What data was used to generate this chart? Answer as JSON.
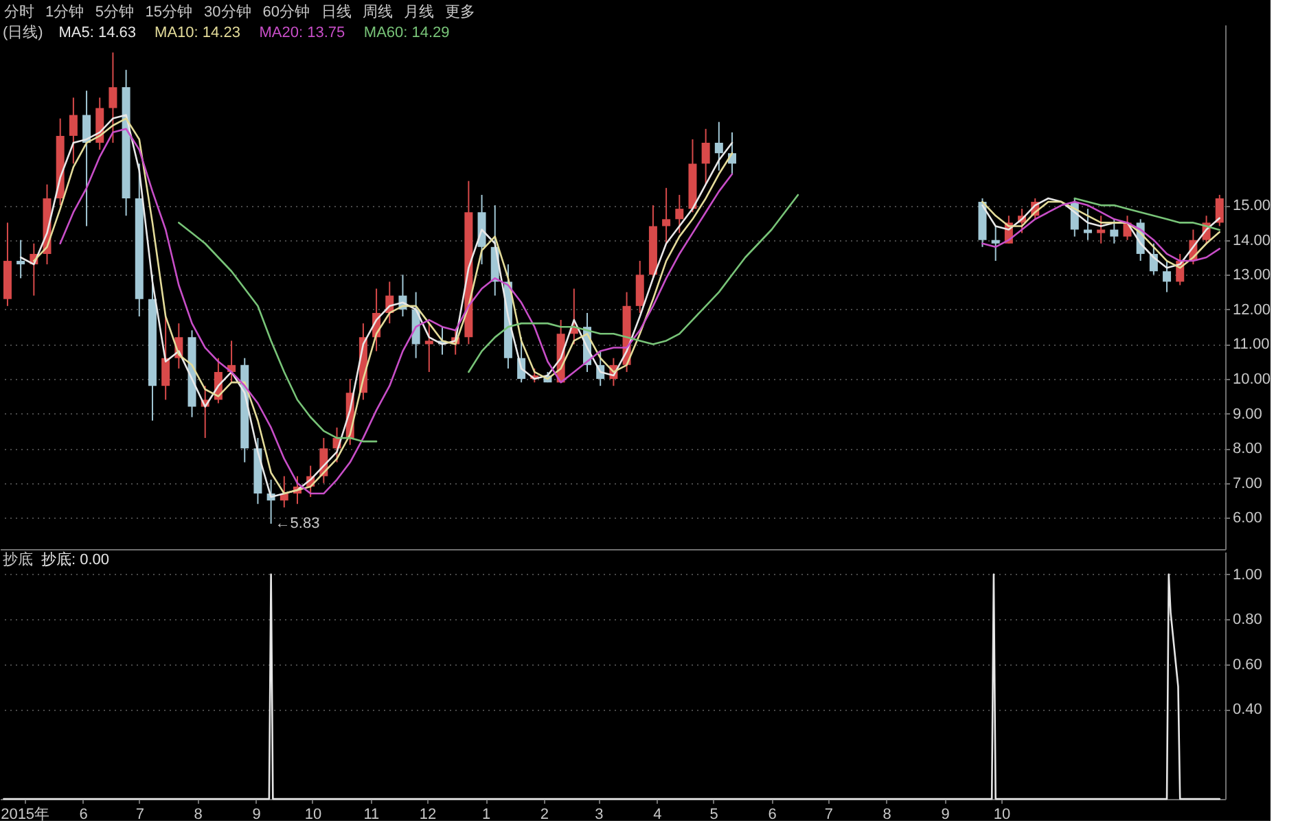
{
  "chart_data": [
    {
      "type": "candlestick",
      "title": "(日线)",
      "annotations": [
        "分时",
        "1分钟",
        "5分钟",
        "15分钟",
        "30分钟",
        "60分钟",
        "日线",
        "周线",
        "月线",
        "更多",
        {
          "text": "←5.83",
          "x": "2015-09-09",
          "y": 5.83
        }
      ],
      "x": [
        "2015-04-22",
        "2015-04-29",
        "2015-05-06",
        "2015-05-13",
        "2015-05-20",
        "2015-05-27",
        "2015-06-03",
        "2015-06-10",
        "2015-06-17",
        "2015-06-24",
        "2015-07-01",
        "2015-07-08",
        "2015-07-15",
        "2015-07-22",
        "2015-07-29",
        "2015-08-05",
        "2015-08-12",
        "2015-08-19",
        "2015-08-26",
        "2015-09-02",
        "2015-09-09",
        "2015-09-16",
        "2015-09-23",
        "2015-09-30",
        "2015-10-07",
        "2015-10-14",
        "2015-10-21",
        "2015-10-28",
        "2015-11-04",
        "2015-11-11",
        "2015-11-18",
        "2015-11-25",
        "2015-12-02",
        "2015-12-09",
        "2015-12-16",
        "2015-12-23",
        "2015-12-30",
        "2016-01-06",
        "2016-01-13",
        "2016-01-20",
        "2016-01-27",
        "2016-02-03",
        "2016-02-10",
        "2016-02-17",
        "2016-02-24",
        "2016-03-02",
        "2016-03-09",
        "2016-03-16",
        "2016-03-23",
        "2016-03-30",
        "2016-04-06",
        "2016-04-13",
        "2016-04-20",
        "2016-04-27",
        "2016-05-04",
        "2016-05-11",
        "2016-09-21",
        "2016-09-28",
        "2016-10-05",
        "2016-10-12",
        "2016-10-19",
        "2016-11-09",
        "2016-11-16",
        "2016-11-23",
        "2016-11-30",
        "2016-12-07",
        "2016-12-14",
        "2016-12-21",
        "2016-12-28",
        "2017-01-04",
        "2017-01-11",
        "2017-01-18",
        "2017-01-25"
      ],
      "ohlc": [
        [
          12.3,
          14.5,
          12.1,
          13.4
        ],
        [
          13.4,
          14.0,
          12.9,
          13.3
        ],
        [
          13.3,
          13.9,
          12.4,
          13.6
        ],
        [
          13.6,
          15.6,
          13.3,
          15.2
        ],
        [
          15.2,
          17.5,
          15.0,
          17.0
        ],
        [
          17.0,
          18.1,
          16.2,
          17.6
        ],
        [
          17.6,
          18.3,
          14.4,
          16.8
        ],
        [
          16.8,
          18.1,
          16.6,
          17.8
        ],
        [
          17.8,
          19.4,
          16.8,
          18.4
        ],
        [
          18.4,
          18.9,
          14.7,
          15.2
        ],
        [
          15.2,
          16.2,
          11.8,
          12.3
        ],
        [
          12.3,
          13.0,
          8.8,
          9.8
        ],
        [
          9.8,
          11.8,
          9.4,
          10.6
        ],
        [
          10.6,
          11.6,
          10.3,
          11.2
        ],
        [
          11.2,
          11.4,
          8.9,
          9.2
        ],
        [
          9.2,
          9.8,
          8.3,
          9.4
        ],
        [
          9.4,
          10.6,
          9.3,
          10.2
        ],
        [
          10.2,
          11.1,
          9.9,
          10.4
        ],
        [
          10.4,
          10.6,
          7.6,
          8.0
        ],
        [
          8.0,
          8.3,
          6.4,
          6.7
        ],
        [
          6.7,
          7.1,
          5.83,
          6.5
        ],
        [
          6.5,
          7.2,
          6.3,
          6.7
        ],
        [
          6.7,
          7.2,
          6.4,
          6.9
        ],
        [
          6.9,
          7.5,
          6.6,
          7.2
        ],
        [
          7.2,
          8.3,
          7.0,
          8.0
        ],
        [
          8.0,
          8.6,
          7.6,
          8.3
        ],
        [
          8.3,
          10.0,
          8.1,
          9.6
        ],
        [
          9.6,
          11.6,
          9.4,
          11.2
        ],
        [
          11.2,
          12.6,
          10.8,
          11.9
        ],
        [
          11.9,
          12.8,
          11.6,
          12.4
        ],
        [
          12.4,
          13.0,
          11.8,
          12.0
        ],
        [
          12.0,
          12.5,
          10.6,
          11.0
        ],
        [
          11.0,
          11.6,
          10.2,
          11.1
        ],
        [
          11.1,
          11.5,
          10.7,
          11.0
        ],
        [
          11.0,
          11.4,
          10.7,
          11.2
        ],
        [
          11.2,
          15.7,
          11.0,
          14.8
        ],
        [
          14.8,
          15.3,
          13.3,
          13.8
        ],
        [
          13.8,
          15.0,
          12.4,
          12.8
        ],
        [
          12.8,
          13.3,
          10.3,
          10.6
        ],
        [
          10.6,
          11.2,
          9.9,
          10.0
        ],
        [
          10.0,
          10.3,
          9.9,
          10.1
        ],
        [
          10.1,
          10.2,
          9.9,
          9.9
        ],
        [
          9.9,
          11.7,
          9.9,
          11.3
        ],
        [
          11.3,
          12.6,
          11.0,
          11.5
        ],
        [
          11.5,
          11.9,
          10.2,
          10.4
        ],
        [
          10.4,
          10.8,
          9.8,
          10.0
        ],
        [
          10.0,
          10.6,
          9.8,
          10.4
        ],
        [
          10.4,
          12.5,
          10.2,
          12.1
        ],
        [
          12.1,
          13.4,
          11.9,
          13.0
        ],
        [
          13.0,
          15.0,
          12.9,
          14.4
        ],
        [
          14.4,
          15.5,
          13.9,
          14.6
        ],
        [
          14.6,
          15.3,
          14.2,
          14.9
        ],
        [
          14.9,
          16.9,
          14.8,
          16.2
        ],
        [
          16.2,
          17.2,
          15.6,
          16.8
        ],
        [
          16.8,
          17.4,
          16.0,
          16.5
        ],
        [
          16.5,
          17.1,
          15.9,
          16.2
        ],
        [
          15.1,
          15.2,
          13.8,
          14.0
        ],
        [
          14.0,
          14.4,
          13.4,
          13.9
        ],
        [
          13.9,
          14.7,
          13.9,
          14.5
        ],
        [
          14.5,
          14.9,
          14.2,
          14.7
        ],
        [
          14.7,
          15.2,
          14.6,
          15.1
        ],
        [
          15.1,
          15.2,
          14.1,
          14.3
        ],
        [
          14.3,
          14.9,
          14.0,
          14.2
        ],
        [
          14.2,
          14.7,
          13.9,
          14.3
        ],
        [
          14.3,
          14.6,
          13.9,
          14.1
        ],
        [
          14.1,
          14.7,
          14.0,
          14.5
        ],
        [
          14.5,
          14.6,
          13.4,
          13.6
        ],
        [
          13.6,
          13.9,
          13.0,
          13.1
        ],
        [
          13.1,
          13.4,
          12.5,
          12.8
        ],
        [
          12.8,
          13.6,
          12.7,
          13.4
        ],
        [
          13.4,
          14.3,
          13.3,
          14.0
        ],
        [
          14.0,
          14.7,
          13.9,
          14.5
        ],
        [
          14.5,
          15.3,
          14.4,
          15.2
        ]
      ],
      "colors": [
        "#d84a4a",
        "#a2c8d6",
        "#d84a4a",
        "#d84a4a",
        "#d84a4a",
        "#d84a4a",
        "#a2c8d6",
        "#d84a4a",
        "#d84a4a",
        "#a2c8d6",
        "#a2c8d6",
        "#a2c8d6",
        "#d84a4a",
        "#d84a4a",
        "#a2c8d6",
        "#d84a4a",
        "#d84a4a",
        "#d84a4a",
        "#a2c8d6",
        "#a2c8d6",
        "#a2c8d6",
        "#d84a4a",
        "#d84a4a",
        "#d84a4a",
        "#d84a4a",
        "#d84a4a",
        "#d84a4a",
        "#d84a4a",
        "#d84a4a",
        "#d84a4a",
        "#a2c8d6",
        "#a2c8d6",
        "#d84a4a",
        "#a2c8d6",
        "#d84a4a",
        "#d84a4a",
        "#a2c8d6",
        "#a2c8d6",
        "#a2c8d6",
        "#a2c8d6",
        "#d84a4a",
        "#a2c8d6",
        "#d84a4a",
        "#d84a4a",
        "#a2c8d6",
        "#a2c8d6",
        "#d84a4a",
        "#d84a4a",
        "#d84a4a",
        "#d84a4a",
        "#d84a4a",
        "#d84a4a",
        "#d84a4a",
        "#d84a4a",
        "#a2c8d6",
        "#a2c8d6",
        "#a2c8d6",
        "#a2c8d6",
        "#d84a4a",
        "#d84a4a",
        "#d84a4a",
        "#a2c8d6",
        "#a2c8d6",
        "#d84a4a",
        "#a2c8d6",
        "#d84a4a",
        "#a2c8d6",
        "#a2c8d6",
        "#a2c8d6",
        "#d84a4a",
        "#d84a4a",
        "#d84a4a",
        "#d84a4a"
      ],
      "series": [
        {
          "name": "MA5: 14.63",
          "type": "line",
          "color": "#e8e8e8",
          "x": [
            "2015-04-29",
            "2015-05-06",
            "2015-05-13",
            "2015-05-20",
            "2015-05-27",
            "2015-06-03",
            "2015-06-10",
            "2015-06-17",
            "2015-06-24",
            "2015-07-01",
            "2015-07-08",
            "2015-07-15",
            "2015-07-22",
            "2015-07-29",
            "2015-08-05",
            "2015-08-12",
            "2015-08-19",
            "2015-08-26",
            "2015-09-02",
            "2015-09-09",
            "2015-09-16",
            "2015-09-23",
            "2015-09-30",
            "2015-10-07",
            "2015-10-14",
            "2015-10-21",
            "2015-10-28",
            "2015-11-04",
            "2015-11-11",
            "2015-11-18",
            "2015-11-25",
            "2015-12-02",
            "2015-12-09",
            "2015-12-16",
            "2015-12-23",
            "2015-12-30",
            "2016-01-06",
            "2016-01-13",
            "2016-01-20",
            "2016-01-27",
            "2016-02-03",
            "2016-02-10",
            "2016-02-17",
            "2016-02-24",
            "2016-03-02",
            "2016-03-09",
            "2016-03-16",
            "2016-03-23",
            "2016-03-30",
            "2016-04-06",
            "2016-04-13",
            "2016-04-20",
            "2016-04-27",
            "2016-05-04",
            "2016-05-11",
            "2016-05-18",
            "2016-09-21",
            "2016-09-28",
            "2016-10-05",
            "2016-10-12",
            "2016-10-19",
            "2016-10-26",
            "2016-11-02",
            "2016-11-09",
            "2016-11-16",
            "2016-11-23",
            "2016-11-30",
            "2016-12-07",
            "2016-12-14",
            "2016-12-21",
            "2016-12-28",
            "2017-01-04",
            "2017-01-11",
            "2017-01-18",
            "2017-01-25"
          ],
          "values": [
            13.5,
            13.3,
            14.2,
            15.8,
            16.8,
            16.9,
            17.1,
            17.5,
            17.6,
            16.0,
            12.8,
            10.5,
            10.8,
            10.0,
            9.2,
            9.8,
            10.2,
            9.6,
            7.9,
            6.6,
            6.7,
            6.8,
            7.1,
            7.5,
            7.9,
            9.1,
            11.0,
            11.7,
            12.1,
            12.2,
            12.0,
            11.2,
            11.0,
            11.1,
            13.2,
            14.3,
            13.9,
            11.8,
            10.3,
            10.0,
            10.1,
            10.6,
            11.7,
            10.9,
            10.2,
            10.1,
            10.8,
            11.8,
            12.9,
            13.9,
            14.4,
            14.9,
            15.6,
            16.3,
            16.8,
            null,
            15.0,
            14.4,
            14.3,
            14.6,
            15.0,
            15.2,
            15.1,
            14.8,
            14.5,
            14.4,
            14.5,
            14.5,
            13.9,
            13.5,
            13.2,
            13.3,
            13.8,
            14.3,
            14.63
          ]
        },
        {
          "name": "MA10: 14.23",
          "type": "line",
          "color": "#e4dc9a",
          "x": [
            "2015-05-06",
            "2015-05-13",
            "2015-05-20",
            "2015-05-27",
            "2015-06-03",
            "2015-06-10",
            "2015-06-17",
            "2015-06-24",
            "2015-07-01",
            "2015-07-08",
            "2015-07-15",
            "2015-07-22",
            "2015-07-29",
            "2015-08-05",
            "2015-08-12",
            "2015-08-19",
            "2015-08-26",
            "2015-09-02",
            "2015-09-09",
            "2015-09-16",
            "2015-09-23",
            "2015-09-30",
            "2015-10-07",
            "2015-10-14",
            "2015-10-21",
            "2015-10-28",
            "2015-11-04",
            "2015-11-11",
            "2015-11-18",
            "2015-11-25",
            "2015-12-02",
            "2015-12-09",
            "2015-12-16",
            "2015-12-23",
            "2015-12-30",
            "2016-01-06",
            "2016-01-13",
            "2016-01-20",
            "2016-01-27",
            "2016-02-03",
            "2016-02-10",
            "2016-02-17",
            "2016-02-24",
            "2016-03-02",
            "2016-03-09",
            "2016-03-16",
            "2016-03-23",
            "2016-03-30",
            "2016-04-06",
            "2016-04-13",
            "2016-04-20",
            "2016-04-27",
            "2016-05-04",
            "2016-05-11",
            "2016-05-18",
            "2016-09-21",
            "2016-09-28",
            "2016-10-05",
            "2016-10-12",
            "2016-10-19",
            "2016-10-26",
            "2016-11-02",
            "2016-11-09",
            "2016-11-16",
            "2016-11-23",
            "2016-11-30",
            "2016-12-07",
            "2016-12-14",
            "2016-12-21",
            "2016-12-28",
            "2017-01-04",
            "2017-01-11",
            "2017-01-18",
            "2017-01-25"
          ],
          "values": [
            13.4,
            13.8,
            14.9,
            16.1,
            16.8,
            17.0,
            17.3,
            17.5,
            16.9,
            14.5,
            11.8,
            10.7,
            10.4,
            9.7,
            9.5,
            9.9,
            9.9,
            8.8,
            7.3,
            6.7,
            6.8,
            6.9,
            7.3,
            7.7,
            8.4,
            10.0,
            11.3,
            11.9,
            12.1,
            12.1,
            11.6,
            11.1,
            11.0,
            12.1,
            13.7,
            14.1,
            12.9,
            11.1,
            10.2,
            10.0,
            10.3,
            11.1,
            11.3,
            10.6,
            10.2,
            10.4,
            11.3,
            12.3,
            13.4,
            14.1,
            14.6,
            15.2,
            15.9,
            16.5,
            null,
            15.1,
            14.7,
            14.4,
            14.4,
            14.8,
            15.1,
            15.1,
            14.9,
            14.7,
            14.5,
            14.5,
            14.5,
            14.2,
            13.8,
            13.4,
            13.2,
            13.5,
            13.9,
            14.23
          ]
        },
        {
          "name": "MA20: 13.75",
          "type": "line",
          "color": "#c84ec8",
          "x": [
            "2015-05-20",
            "2015-05-27",
            "2015-06-03",
            "2015-06-10",
            "2015-06-17",
            "2015-06-24",
            "2015-07-01",
            "2015-07-08",
            "2015-07-15",
            "2015-07-22",
            "2015-07-29",
            "2015-08-05",
            "2015-08-12",
            "2015-08-19",
            "2015-08-26",
            "2015-09-02",
            "2015-09-09",
            "2015-09-16",
            "2015-09-23",
            "2015-09-30",
            "2015-10-07",
            "2015-10-14",
            "2015-10-21",
            "2015-10-28",
            "2015-11-04",
            "2015-11-11",
            "2015-11-18",
            "2015-11-25",
            "2015-12-02",
            "2015-12-09",
            "2015-12-16",
            "2015-12-23",
            "2015-12-30",
            "2016-01-06",
            "2016-01-13",
            "2016-01-20",
            "2016-01-27",
            "2016-02-03",
            "2016-02-10",
            "2016-02-17",
            "2016-02-24",
            "2016-03-02",
            "2016-03-09",
            "2016-03-16",
            "2016-03-23",
            "2016-03-30",
            "2016-04-06",
            "2016-04-13",
            "2016-04-20",
            "2016-04-27",
            "2016-05-04",
            "2016-05-11",
            "2016-05-18",
            "2016-09-21",
            "2016-09-28",
            "2016-10-05",
            "2016-10-12",
            "2016-10-19",
            "2016-10-26",
            "2016-11-02",
            "2016-11-09",
            "2016-11-16",
            "2016-11-23",
            "2016-11-30",
            "2016-12-07",
            "2016-12-14",
            "2016-12-21",
            "2016-12-28",
            "2017-01-04",
            "2017-01-11",
            "2017-01-18",
            "2017-01-25"
          ],
          "values": [
            13.9,
            14.8,
            15.5,
            16.4,
            17.1,
            17.2,
            16.6,
            15.4,
            14.3,
            12.7,
            11.6,
            10.9,
            10.5,
            10.2,
            9.8,
            9.3,
            8.6,
            7.7,
            7.0,
            6.7,
            6.7,
            7.1,
            7.6,
            8.3,
            9.1,
            9.8,
            10.8,
            11.5,
            11.7,
            11.5,
            11.4,
            12.1,
            12.6,
            12.9,
            12.7,
            12.2,
            11.5,
            10.5,
            9.9,
            10.2,
            10.5,
            10.8,
            10.9,
            10.9,
            11.4,
            12.1,
            12.9,
            13.6,
            14.2,
            14.8,
            15.4,
            15.9,
            null,
            13.9,
            13.8,
            14.0,
            14.3,
            14.6,
            14.8,
            15.0,
            15.1,
            15.0,
            14.8,
            14.6,
            14.5,
            14.3,
            14.0,
            13.6,
            13.4,
            13.4,
            13.5,
            13.75
          ]
        },
        {
          "name": "MA60: 14.29",
          "type": "line",
          "color": "#78c478",
          "x": [
            "2015-07-22",
            "2015-07-29",
            "2015-08-05",
            "2015-08-12",
            "2015-08-19",
            "2015-08-26",
            "2015-09-02",
            "2015-09-09",
            "2015-09-16",
            "2015-09-23",
            "2015-09-30",
            "2015-10-07",
            "2015-10-14",
            "2015-10-21",
            "2015-10-28",
            "2015-11-04",
            "2015-11-11",
            "2015-12-23",
            "2015-12-30",
            "2016-01-06",
            "2016-01-13",
            "2016-01-20",
            "2016-01-27",
            "2016-02-03",
            "2016-02-10",
            "2016-02-17",
            "2016-02-24",
            "2016-03-02",
            "2016-03-09",
            "2016-03-16",
            "2016-03-23",
            "2016-03-30",
            "2016-04-06",
            "2016-04-13",
            "2016-04-20",
            "2016-04-27",
            "2016-05-04",
            "2016-05-11",
            "2016-05-18",
            "2016-05-25",
            "2016-06-01",
            "2016-06-08",
            "2016-06-15",
            "2016-06-22",
            "2016-11-09",
            "2016-11-16",
            "2016-11-23",
            "2016-11-30",
            "2016-12-07",
            "2016-12-14",
            "2016-12-21",
            "2016-12-28",
            "2017-01-04",
            "2017-01-11",
            "2017-01-18",
            "2017-01-25"
          ],
          "values": [
            14.5,
            14.2,
            13.9,
            13.5,
            13.1,
            12.6,
            12.1,
            11.1,
            10.2,
            9.4,
            8.9,
            8.5,
            8.3,
            8.3,
            8.2,
            8.2,
            null,
            10.2,
            10.8,
            11.2,
            11.5,
            11.6,
            11.6,
            11.6,
            11.5,
            11.5,
            11.4,
            11.3,
            11.3,
            11.2,
            11.1,
            11.0,
            11.1,
            11.3,
            11.7,
            12.1,
            12.5,
            13.0,
            13.5,
            13.9,
            14.3,
            14.8,
            15.3,
            null,
            15.2,
            15.1,
            15.0,
            15.0,
            14.9,
            14.8,
            14.7,
            14.6,
            14.5,
            14.5,
            14.4,
            14.29
          ]
        }
      ],
      "xlim": [
        "2015-04-18",
        "2017-01-28"
      ],
      "ylim": [
        5.1,
        20.2
      ],
      "yticks": [
        {
          "value": 6,
          "label": "6.00"
        },
        {
          "value": 7,
          "label": "7.00"
        },
        {
          "value": 8,
          "label": "8.00"
        },
        {
          "value": 9,
          "label": "9.00"
        },
        {
          "value": 10,
          "label": "10.00"
        },
        {
          "value": 11,
          "label": "11.00"
        },
        {
          "value": 12,
          "label": "12.00"
        },
        {
          "value": 13,
          "label": "13.00"
        },
        {
          "value": 14,
          "label": "14.00"
        },
        {
          "value": 15,
          "label": "15.00"
        }
      ],
      "tick_labels": "y",
      "grid": "y",
      "legend": "top left"
    },
    {
      "type": "line",
      "title": "抄底",
      "series": [
        {
          "name": "抄底: 0.00",
          "color": "#e6e6e6",
          "x": [
            "2015-04-20",
            "2015-09-08",
            "2015-09-09",
            "2015-09-10",
            "2016-09-26",
            "2016-09-27",
            "2016-09-28",
            "2016-12-28",
            "2016-12-29",
            "2016-12-30",
            "2017-01-03",
            "2017-01-04",
            "2017-01-25"
          ],
          "values": [
            0,
            0,
            1.0,
            0,
            0,
            1.0,
            0,
            0,
            1.0,
            0.83,
            0.5,
            0,
            0
          ]
        }
      ],
      "xlim": [
        "2015-04-18",
        "2017-01-28"
      ],
      "ylim": [
        0,
        1.1
      ],
      "xticks": [
        {
          "value": "2015-05",
          "label": "2015年"
        },
        {
          "value": "2015-06",
          "label": "6"
        },
        {
          "value": "2015-07",
          "label": "7"
        },
        {
          "value": "2015-08",
          "label": "8"
        },
        {
          "value": "2015-09",
          "label": "9"
        },
        {
          "value": "2015-10",
          "label": "10"
        },
        {
          "value": "2015-11",
          "label": "11"
        },
        {
          "value": "2015-12",
          "label": "12"
        },
        {
          "value": "2016-01",
          "label": "1"
        },
        {
          "value": "2016-02",
          "label": "2"
        },
        {
          "value": "2016-03",
          "label": "3"
        },
        {
          "value": "2016-04",
          "label": "4"
        },
        {
          "value": "2016-05",
          "label": "5"
        },
        {
          "value": "2016-06",
          "label": "6"
        },
        {
          "value": "2016-07",
          "label": "7"
        },
        {
          "value": "2016-08",
          "label": "8"
        },
        {
          "value": "2016-09",
          "label": "9"
        },
        {
          "value": "2016-10",
          "label": "10"
        }
      ],
      "yticks": [
        {
          "value": 0.4,
          "label": "0.40"
        },
        {
          "value": 0.6,
          "label": "0.60"
        },
        {
          "value": 0.8,
          "label": "0.80"
        },
        {
          "value": 1.0,
          "label": "1.00"
        }
      ],
      "grid": "y",
      "legend": "top left"
    }
  ]
}
